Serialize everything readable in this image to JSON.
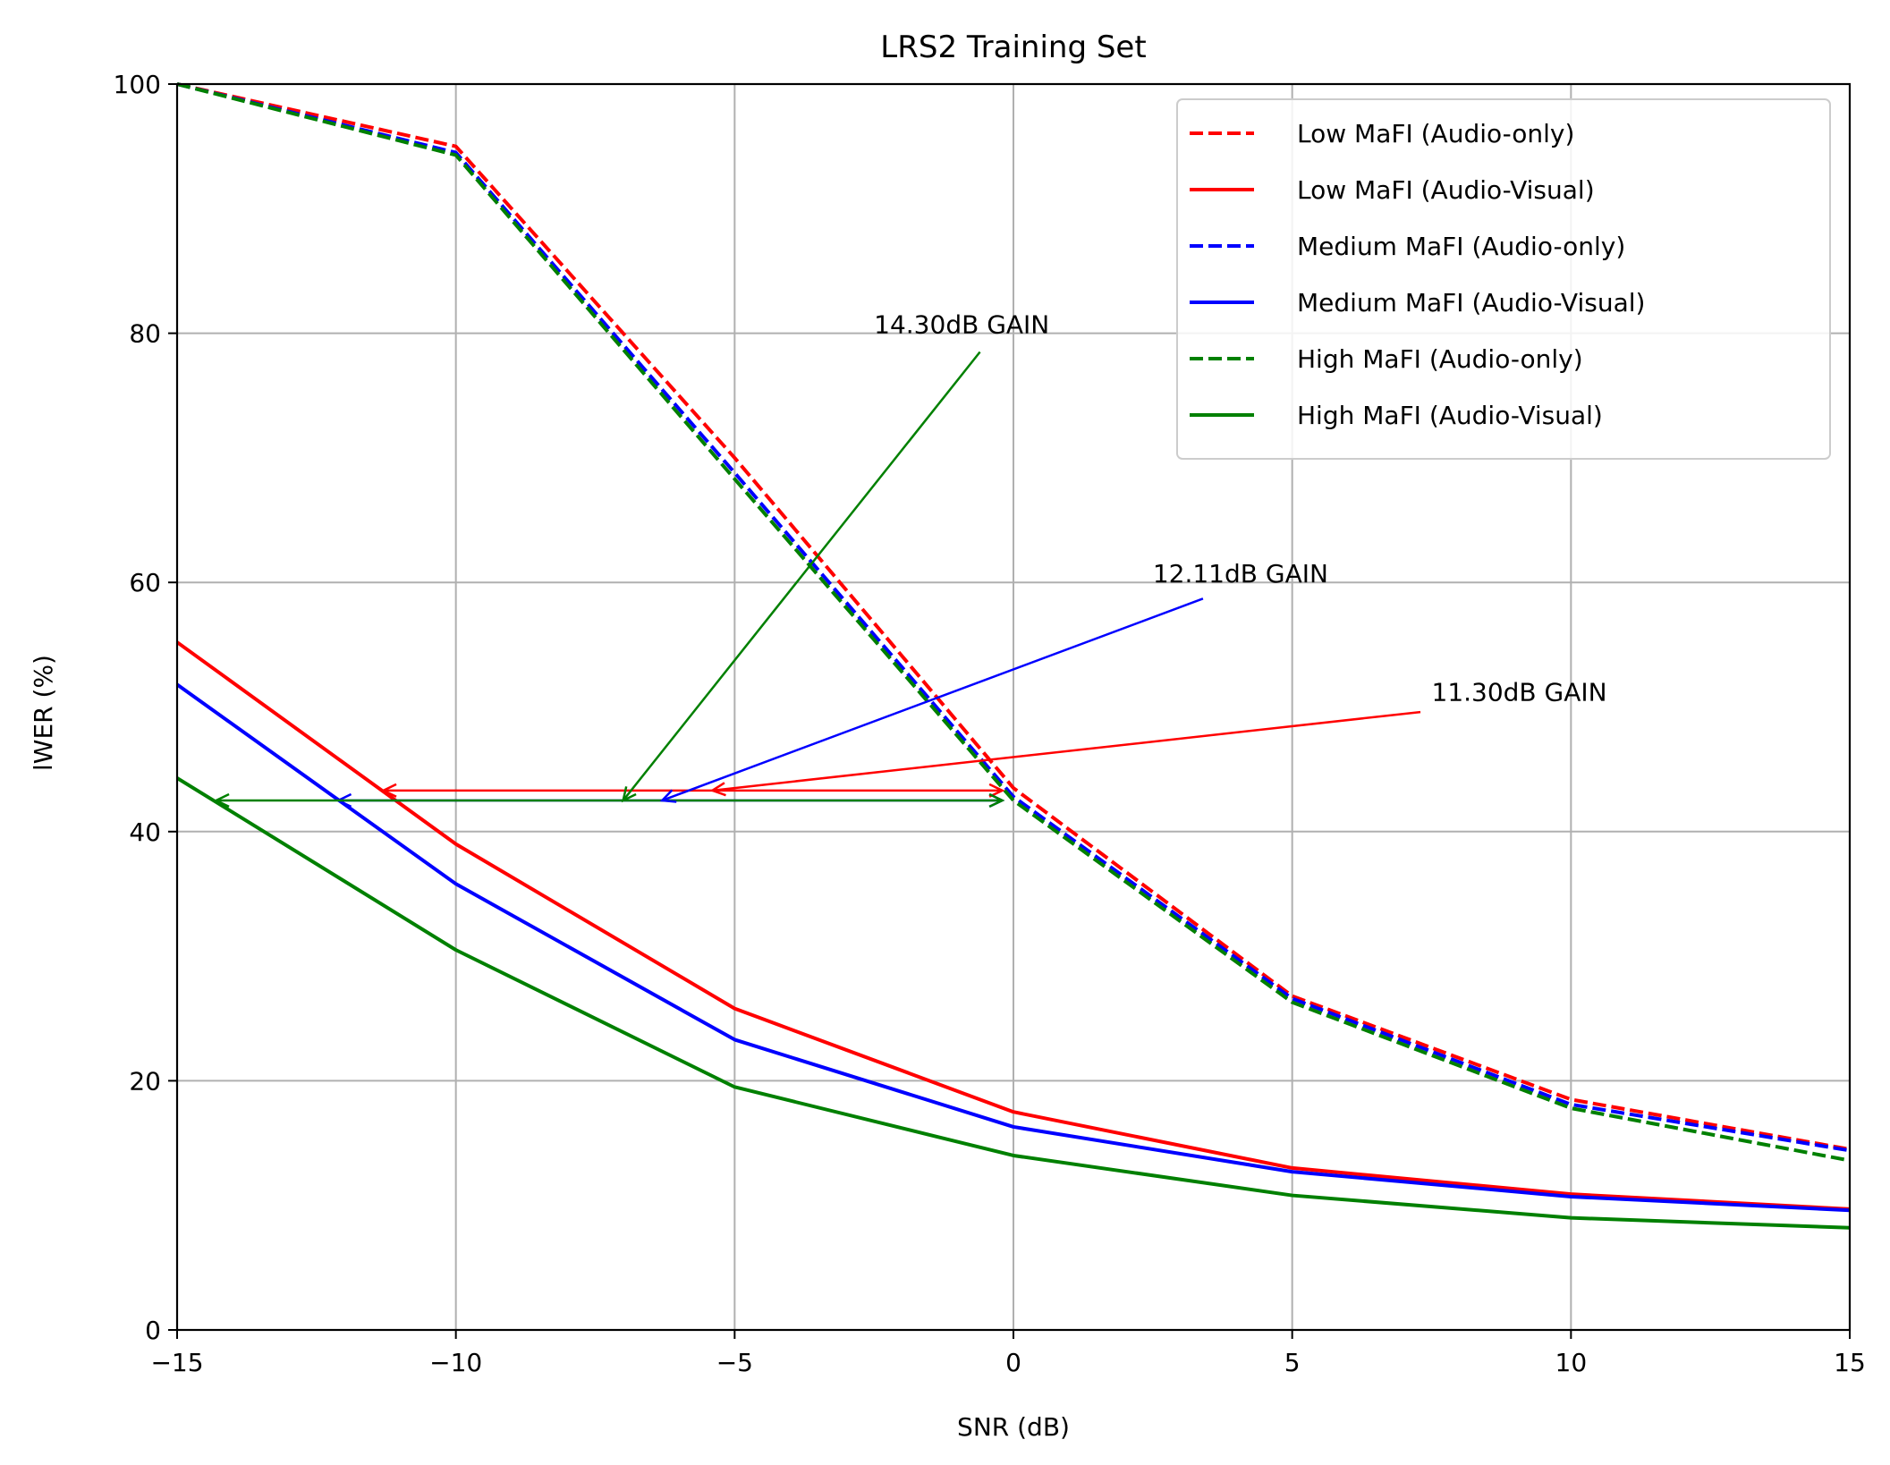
{
  "chart_data": {
    "type": "line",
    "title": "LRS2 Training Set",
    "xlabel": "SNR (dB)",
    "ylabel": "lWER (%)",
    "xlim": [
      -15,
      15
    ],
    "ylim": [
      0,
      100
    ],
    "xticks": [
      -15,
      -10,
      -5,
      0,
      5,
      10,
      15
    ],
    "xtick_labels": [
      "−15",
      "−10",
      "−5",
      "0",
      "5",
      "10",
      "15"
    ],
    "yticks": [
      0,
      20,
      40,
      60,
      80,
      100
    ],
    "ytick_labels": [
      "0",
      "20",
      "40",
      "60",
      "80",
      "100"
    ],
    "grid": true,
    "legend_position": "top-right",
    "x": [
      -15,
      -10,
      -5,
      0,
      5,
      10,
      15
    ],
    "series": [
      {
        "name": "Low MaFI (Audio-only)",
        "color": "#ff0000",
        "dashed": true,
        "values": [
          100,
          95.0,
          70.0,
          43.5,
          26.8,
          18.5,
          14.5
        ]
      },
      {
        "name": "Low MaFI (Audio-Visual)",
        "color": "#ff0000",
        "dashed": false,
        "values": [
          55.2,
          39.0,
          25.8,
          17.5,
          13.0,
          10.9,
          9.7
        ]
      },
      {
        "name": "Medium MaFI (Audio-only)",
        "color": "#0000ff",
        "dashed": true,
        "values": [
          100,
          94.5,
          68.8,
          42.8,
          26.6,
          18.1,
          14.4
        ]
      },
      {
        "name": "Medium MaFI (Audio-Visual)",
        "color": "#0000ff",
        "dashed": false,
        "values": [
          51.8,
          35.8,
          23.3,
          16.3,
          12.7,
          10.7,
          9.6
        ]
      },
      {
        "name": "High MaFI (Audio-only)",
        "color": "#008000",
        "dashed": true,
        "values": [
          100,
          94.3,
          68.3,
          42.5,
          26.3,
          17.8,
          13.6
        ]
      },
      {
        "name": "High MaFI (Audio-Visual)",
        "color": "#008000",
        "dashed": false,
        "values": [
          44.3,
          30.5,
          19.5,
          14.0,
          10.8,
          9.0,
          8.2
        ]
      }
    ],
    "annotations": [
      {
        "text": "14.30dB GAIN",
        "color": "#008000",
        "text_x": -2.5,
        "text_y": 80.0,
        "line_from": [
          -0.6,
          78.5
        ],
        "line_to": [
          -7.0,
          42.5
        ]
      },
      {
        "text": "12.11dB GAIN",
        "color": "#0000ff",
        "text_x": 2.5,
        "text_y": 60.0,
        "line_from": [
          3.4,
          58.7
        ],
        "line_to": [
          -6.3,
          42.5
        ]
      },
      {
        "text": "11.30dB GAIN",
        "color": "#ff0000",
        "text_x": 7.5,
        "text_y": 50.5,
        "line_from": [
          7.3,
          49.6
        ],
        "line_to": [
          -5.4,
          43.3
        ]
      }
    ],
    "gain_arrows": [
      {
        "color": "#ff0000",
        "y": 43.3,
        "x_from": -11.3,
        "x_to": -0.2
      },
      {
        "color": "#0000ff",
        "y": 42.5,
        "x_from": -12.11,
        "x_to": -0.2
      },
      {
        "color": "#008000",
        "y": 42.5,
        "x_from": -14.3,
        "x_to": -0.2
      }
    ]
  }
}
